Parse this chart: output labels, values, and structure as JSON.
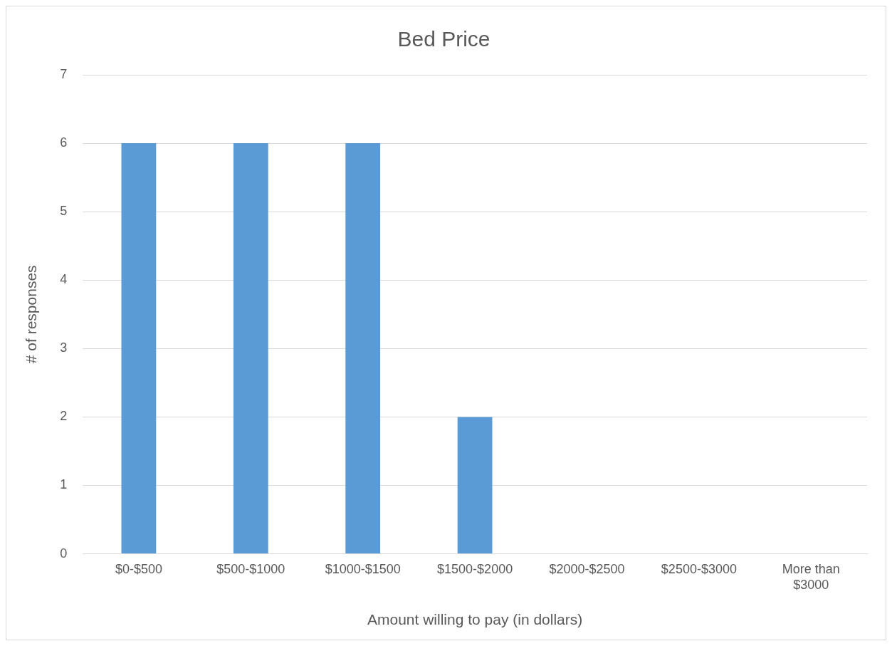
{
  "chart_data": {
    "type": "bar",
    "title": "Bed Price",
    "xlabel": "Amount willing to pay (in dollars)",
    "ylabel": "# of responses",
    "categories": [
      "$0-$500",
      "$500-$1000",
      "$1000-$1500",
      "$1500-$2000",
      "$2000-$2500",
      "$2500-$3000",
      "More than $3000"
    ],
    "values": [
      6,
      6,
      6,
      2,
      0,
      0,
      0
    ],
    "color": "#5b9bd5",
    "ylim": [
      0,
      7
    ],
    "yticks": [
      0,
      1,
      2,
      3,
      4,
      5,
      6,
      7
    ],
    "grid": "y",
    "legend": false
  }
}
